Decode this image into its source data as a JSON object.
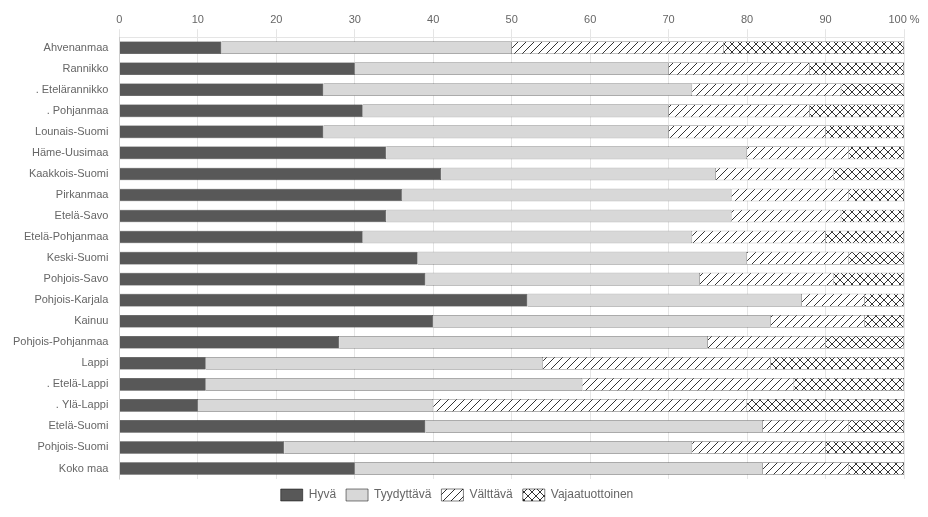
{
  "chart_data": {
    "type": "bar",
    "orientation": "horizontal",
    "stacked": true,
    "categories": [
      "Ahvenanmaa",
      "Rannikko",
      ". Etelärannikko",
      ". Pohjanmaa",
      "Lounais-Suomi",
      "Häme-Uusimaa",
      "Kaakkois-Suomi",
      "Pirkanmaa",
      "Etelä-Savo",
      "Etelä-Pohjanmaa",
      "Keski-Suomi",
      "Pohjois-Savo",
      "Pohjois-Karjala",
      "Kainuu",
      "Pohjois-Pohjanmaa",
      "Lappi",
      ". Etelä-Lappi",
      ". Ylä-Lappi",
      "Etelä-Suomi",
      "Pohjois-Suomi",
      "Koko maa"
    ],
    "series": [
      {
        "name": "Hyvä",
        "color": "#585858",
        "values": [
          13,
          30,
          26,
          31,
          26,
          34,
          41,
          36,
          34,
          31,
          38,
          39,
          52,
          40,
          28,
          11,
          11,
          10,
          39,
          21,
          30
        ]
      },
      {
        "name": "Tyydyttävä",
        "color": "#d8d8d8",
        "values": [
          37,
          40,
          47,
          39,
          44,
          46,
          35,
          42,
          44,
          42,
          42,
          35,
          35,
          43,
          47,
          43,
          48,
          30,
          43,
          52,
          52
        ]
      },
      {
        "name": "Välttävä",
        "color": "#ffffff",
        "values": [
          27,
          18,
          19,
          18,
          20,
          13,
          15,
          15,
          14,
          17,
          13,
          17,
          8,
          12,
          15,
          29,
          27,
          40,
          11,
          17,
          11
        ]
      },
      {
        "name": "Vajaatuottoinen",
        "color": "#ffffff",
        "values": [
          23,
          12,
          8,
          12,
          10,
          7,
          9,
          7,
          8,
          10,
          7,
          9,
          5,
          5,
          10,
          17,
          14,
          20,
          7,
          10,
          7
        ]
      }
    ],
    "xlim": [
      0,
      100
    ],
    "xticks": [
      0,
      10,
      20,
      30,
      40,
      50,
      60,
      70,
      80,
      90,
      {
        "value": 100,
        "label": "100 %"
      }
    ],
    "grid": true,
    "legend": "bottom"
  }
}
